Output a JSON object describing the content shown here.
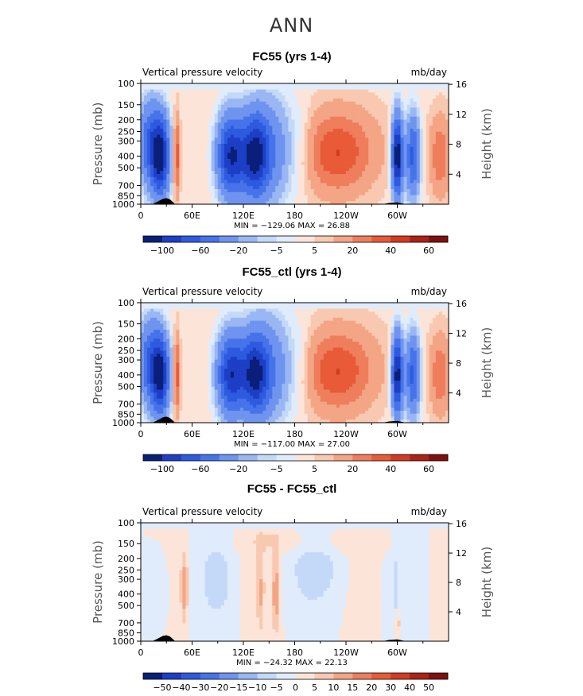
{
  "figure_title": "ANN",
  "chart_data": [
    {
      "type": "heatmap",
      "title": "FC55 (yrs 1-4)",
      "subtitle_left": "Vertical pressure velocity",
      "subtitle_right": "mb/day",
      "ylabel": "Pressure (mb)",
      "ylabel_right": "Height (km)",
      "x_ticks": [
        "0",
        "60E",
        "120E",
        "180",
        "120W",
        "60W"
      ],
      "y_ticks": [
        "100",
        "150",
        "200",
        "250",
        "300",
        "400",
        "500",
        "700",
        "850",
        "1000"
      ],
      "y_ticks_right": [
        "16",
        "12",
        "8",
        "4"
      ],
      "stats": "MIN = −129.06   MAX =  26.88",
      "colorbar_labels": [
        "−100",
        "−60",
        "−20",
        "−5",
        "5",
        "20",
        "40",
        "60"
      ],
      "colorbar_colors": [
        "#0a1f7a",
        "#1d3fc6",
        "#2e5ae0",
        "#4673ea",
        "#6e94ef",
        "#9ab7f3",
        "#c4d9f8",
        "#e0ecfb",
        "#fce5d8",
        "#f8c9b0",
        "#f4a585",
        "#ee7e5c",
        "#e85a38",
        "#d23a22",
        "#ad2116",
        "#7e1010"
      ],
      "field": "ann_fc55"
    },
    {
      "type": "heatmap",
      "title": "FC55_ctl (yrs 1-4)",
      "subtitle_left": "Vertical pressure velocity",
      "subtitle_right": "mb/day",
      "ylabel": "Pressure (mb)",
      "ylabel_right": "Height (km)",
      "x_ticks": [
        "0",
        "60E",
        "120E",
        "180",
        "120W",
        "60W"
      ],
      "y_ticks": [
        "100",
        "150",
        "200",
        "250",
        "300",
        "400",
        "500",
        "700",
        "850",
        "1000"
      ],
      "y_ticks_right": [
        "16",
        "12",
        "8",
        "4"
      ],
      "stats": "MIN = −117.00   MAX =  27.00",
      "colorbar_labels": [
        "−100",
        "−60",
        "−20",
        "−5",
        "5",
        "20",
        "40",
        "60"
      ],
      "colorbar_colors": [
        "#0a1f7a",
        "#1d3fc6",
        "#2e5ae0",
        "#4673ea",
        "#6e94ef",
        "#9ab7f3",
        "#c4d9f8",
        "#e0ecfb",
        "#fce5d8",
        "#f8c9b0",
        "#f4a585",
        "#ee7e5c",
        "#e85a38",
        "#d23a22",
        "#ad2116",
        "#7e1010"
      ],
      "field": "ann_fc55_ctl"
    },
    {
      "type": "heatmap",
      "title": "FC55 - FC55_ctl",
      "subtitle_left": "Vertical pressure velocity",
      "subtitle_right": "mb/day",
      "ylabel": "Pressure (mb)",
      "ylabel_right": "Height (km)",
      "x_ticks": [
        "0",
        "60E",
        "120E",
        "180",
        "120W",
        "60W"
      ],
      "y_ticks": [
        "100",
        "150",
        "200",
        "250",
        "300",
        "400",
        "500",
        "700",
        "850",
        "1000"
      ],
      "y_ticks_right": [
        "16",
        "12",
        "8",
        "4"
      ],
      "stats": "MIN = −24.32   MAX =  22.13",
      "colorbar_labels": [
        "−50",
        "−40",
        "−30",
        "−20",
        "−15",
        "−10",
        "−5",
        "0",
        "5",
        "10",
        "15",
        "20",
        "30",
        "40",
        "50"
      ],
      "colorbar_colors": [
        "#0a1f7a",
        "#1d3fc6",
        "#2e5ae0",
        "#4673ea",
        "#6e94ef",
        "#9ab7f3",
        "#c4d9f8",
        "#e0ecfb",
        "#fce5d8",
        "#f8c9b0",
        "#f4a585",
        "#ee7e5c",
        "#e85a38",
        "#d23a22",
        "#ad2116",
        "#7e1010"
      ],
      "field": "diff"
    }
  ]
}
